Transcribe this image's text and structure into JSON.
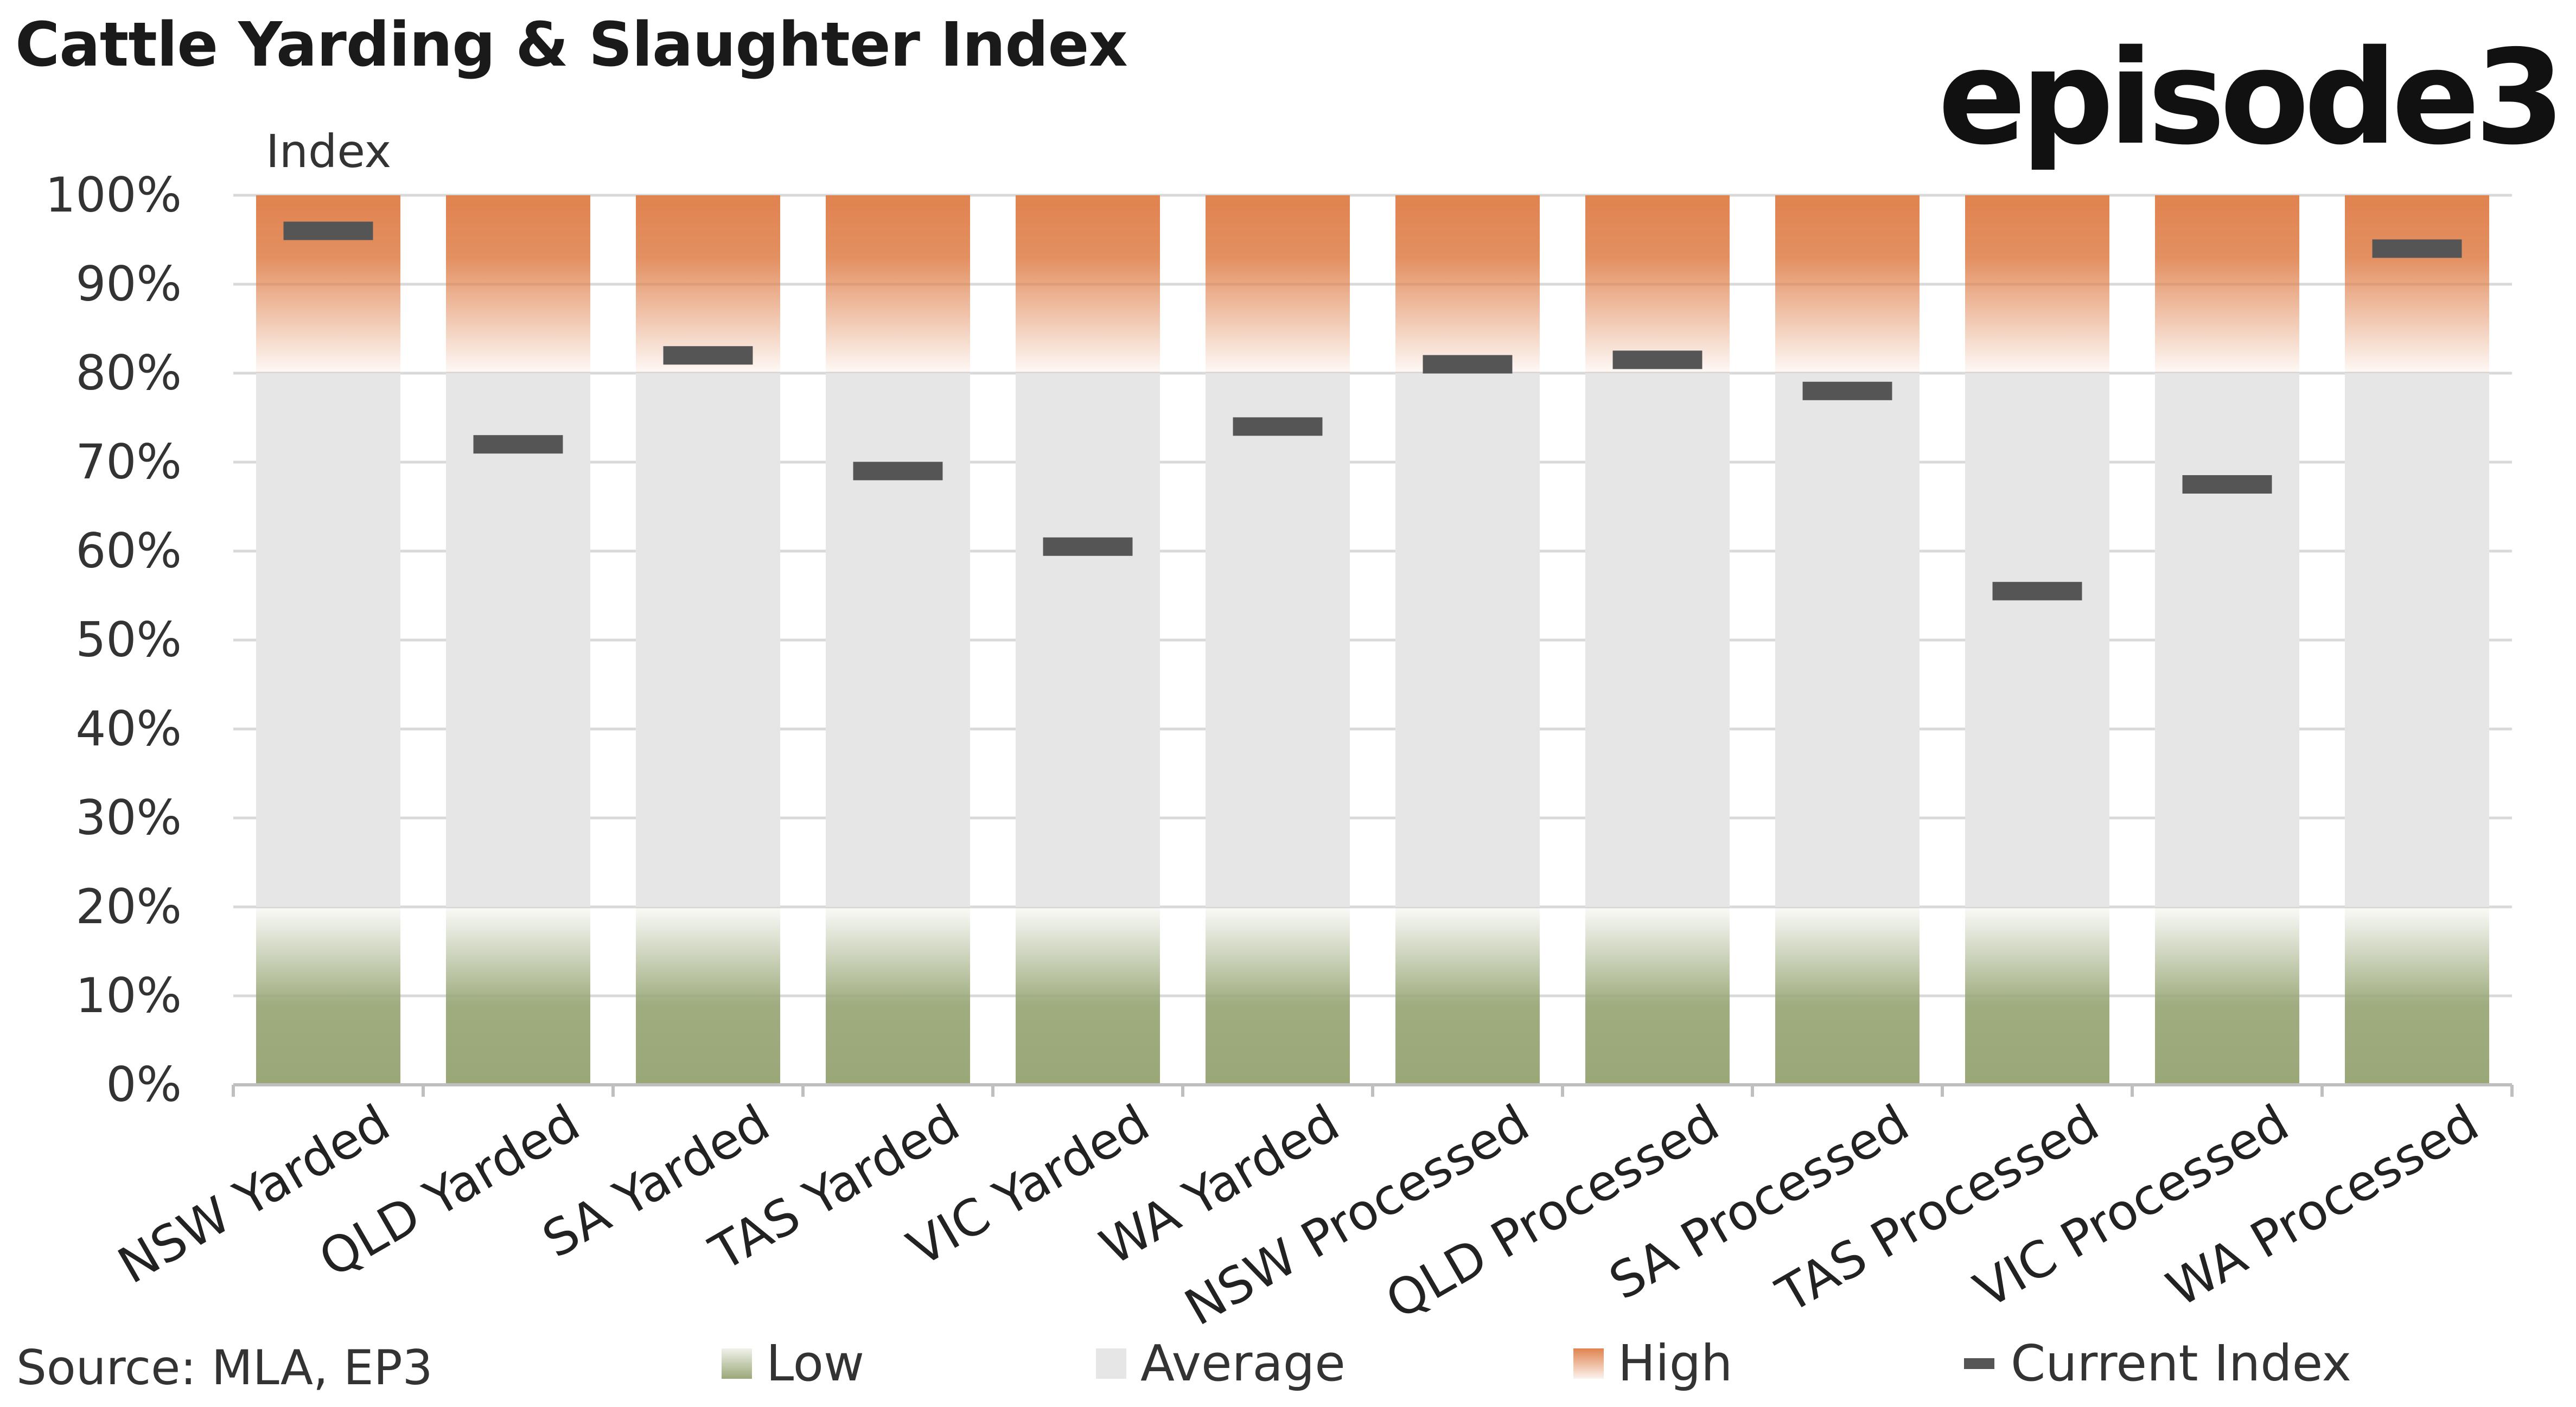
{
  "title": "Cattle Yarding & Slaughter Index",
  "logo": "episode3",
  "source": "Source: MLA, EP3",
  "legend": {
    "low": "Low",
    "average": "Average",
    "high": "High",
    "current": "Current Index"
  },
  "colors": {
    "low": "#9aa878",
    "average": "#e6e6e6",
    "high": "#e0834f",
    "marker": "#555555",
    "gridline": "#d9d9d9",
    "axis": "#bfbfbf"
  },
  "chart_data": {
    "type": "bar",
    "ylabel": "Index",
    "ylim": [
      0,
      100
    ],
    "ytick_labels": [
      "0%",
      "10%",
      "20%",
      "30%",
      "40%",
      "50%",
      "60%",
      "70%",
      "80%",
      "90%",
      "100%"
    ],
    "categories": [
      "NSW Yarded",
      "QLD Yarded",
      "SA Yarded",
      "TAS Yarded",
      "VIC Yarded",
      "WA Yarded",
      "NSW Processed",
      "QLD Processed",
      "SA Processed",
      "TAS Processed",
      "VIC Processed",
      "WA Processed"
    ],
    "bands": [
      {
        "name": "Low",
        "from": 0,
        "to": 20
      },
      {
        "name": "Average",
        "from": 20,
        "to": 80
      },
      {
        "name": "High",
        "from": 80,
        "to": 100
      }
    ],
    "series": [
      {
        "name": "Current Index",
        "values": [
          96,
          72,
          82,
          69,
          60.5,
          74,
          81,
          81.5,
          78,
          55.5,
          67.5,
          94
        ]
      }
    ],
    "grid": true,
    "legend_position": "bottom"
  }
}
